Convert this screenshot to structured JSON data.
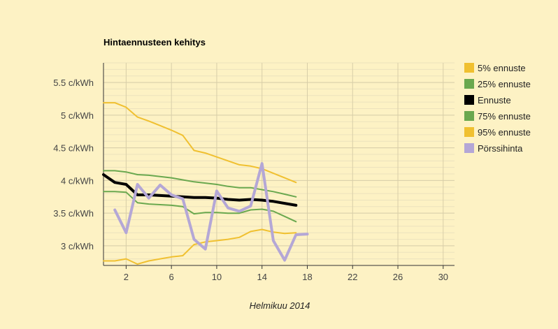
{
  "chart_data": {
    "type": "line",
    "title": "Hintaennusteen kehitys",
    "xlabel": "Helmikuu 2014",
    "ylabel": "",
    "xlim": [
      0,
      31
    ],
    "ylim": [
      2.7,
      5.8
    ],
    "x_ticks": [
      2,
      6,
      10,
      14,
      18,
      22,
      26,
      30
    ],
    "y_ticks": [
      3,
      3.5,
      4,
      4.5,
      5,
      5.5
    ],
    "y_tick_labels": [
      "3 c/kWh",
      "3.5 c/kWh",
      "4 c/kWh",
      "4.5 c/kWh",
      "5 c/kWh",
      "5.5 c/kWh"
    ],
    "grid": true,
    "legend_position": "right",
    "series": [
      {
        "name": "5% ennuste",
        "color": "#f0c030",
        "width": 2,
        "x": [
          0,
          1,
          2,
          3,
          4,
          5,
          6,
          7,
          8,
          9,
          10,
          11,
          12,
          13,
          14,
          15,
          16,
          17
        ],
        "values": [
          2.77,
          2.77,
          2.8,
          2.72,
          2.77,
          2.8,
          2.83,
          2.85,
          3.02,
          3.06,
          3.08,
          3.1,
          3.13,
          3.22,
          3.25,
          3.21,
          3.19,
          3.2
        ]
      },
      {
        "name": "25% ennuste",
        "color": "#6aa84f",
        "width": 2,
        "x": [
          0,
          1,
          2,
          3,
          4,
          5,
          6,
          7,
          8,
          9,
          10,
          11,
          12,
          13,
          14,
          15,
          16,
          17
        ],
        "values": [
          3.83,
          3.83,
          3.82,
          3.66,
          3.64,
          3.63,
          3.62,
          3.6,
          3.49,
          3.51,
          3.51,
          3.5,
          3.5,
          3.55,
          3.56,
          3.53,
          3.45,
          3.37
        ]
      },
      {
        "name": "Ennuste",
        "color": "#000000",
        "width": 4,
        "x": [
          0,
          1,
          2,
          3,
          4,
          5,
          6,
          7,
          8,
          9,
          10,
          11,
          12,
          13,
          14,
          15,
          16,
          17
        ],
        "values": [
          4.09,
          3.97,
          3.94,
          3.78,
          3.78,
          3.77,
          3.76,
          3.75,
          3.74,
          3.74,
          3.73,
          3.71,
          3.7,
          3.71,
          3.7,
          3.68,
          3.65,
          3.62
        ]
      },
      {
        "name": "75% ennuste",
        "color": "#6aa84f",
        "width": 2,
        "x": [
          0,
          1,
          2,
          3,
          4,
          5,
          6,
          7,
          8,
          9,
          10,
          11,
          12,
          13,
          14,
          15,
          16,
          17
        ],
        "values": [
          4.15,
          4.15,
          4.13,
          4.09,
          4.08,
          4.06,
          4.04,
          4.01,
          3.98,
          3.96,
          3.94,
          3.91,
          3.89,
          3.89,
          3.86,
          3.83,
          3.79,
          3.75
        ]
      },
      {
        "name": "95% ennuste",
        "color": "#f0c030",
        "width": 2,
        "x": [
          0,
          1,
          2,
          3,
          4,
          5,
          6,
          7,
          8,
          9,
          10,
          11,
          12,
          13,
          14,
          15,
          16,
          17
        ],
        "values": [
          5.19,
          5.19,
          5.12,
          4.97,
          4.91,
          4.84,
          4.77,
          4.69,
          4.46,
          4.42,
          4.36,
          4.3,
          4.24,
          4.22,
          4.18,
          4.11,
          4.04,
          3.97
        ]
      },
      {
        "name": "Pörssihinta",
        "color": "#b4a7d6",
        "width": 4,
        "x": [
          1,
          2,
          3,
          4,
          5,
          6,
          7,
          8,
          9,
          10,
          11,
          12,
          13,
          14,
          15,
          16,
          17,
          18
        ],
        "values": [
          3.55,
          3.2,
          3.94,
          3.73,
          3.93,
          3.78,
          3.72,
          3.1,
          2.95,
          3.84,
          3.58,
          3.53,
          3.61,
          4.26,
          3.08,
          2.78,
          3.17,
          3.18
        ]
      }
    ]
  }
}
